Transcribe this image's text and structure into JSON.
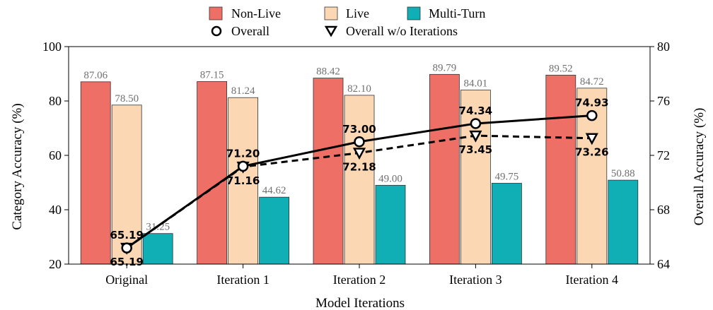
{
  "chart_data": {
    "type": "bar",
    "xlabel": "Model Iterations",
    "ylabel": "Category Accuracy  (%)",
    "y2label": "Overall Accuracy (%)",
    "categories": [
      "Original",
      "Iteration 1",
      "Iteration 2",
      "Iteration 3",
      "Iteration 4"
    ],
    "ylim": [
      20,
      100
    ],
    "yticks": [
      20,
      40,
      60,
      80,
      100
    ],
    "y2lim": [
      64,
      80
    ],
    "y2ticks": [
      64,
      68,
      72,
      76,
      80
    ],
    "series": [
      {
        "name": "Non-Live",
        "color": "#ee6f66",
        "values": [
          87.06,
          87.15,
          88.42,
          89.79,
          89.52
        ],
        "labels": [
          "87.06",
          "87.15",
          "88.42",
          "89.79",
          "89.52"
        ]
      },
      {
        "name": "Live",
        "color": "#fbd7b3",
        "values": [
          78.5,
          81.24,
          82.1,
          84.01,
          84.72
        ],
        "labels": [
          "78.50",
          "81.24",
          "82.10",
          "84.01",
          "84.72"
        ]
      },
      {
        "name": "Multi-Turn",
        "color": "#10aeb5",
        "values": [
          31.25,
          44.62,
          49.0,
          49.75,
          50.88
        ],
        "labels": [
          "31.25",
          "44.62",
          "49.00",
          "49.75",
          "50.88"
        ]
      }
    ],
    "lines": [
      {
        "name": "Overall",
        "marker": "circle",
        "style": "solid",
        "values": [
          65.19,
          71.2,
          73.0,
          74.34,
          74.93
        ],
        "labels": [
          "65.19",
          "71.20",
          "73.00",
          "74.34",
          "74.93"
        ]
      },
      {
        "name": "Overall w/o Iterations",
        "marker": "triangle-down",
        "style": "dashed",
        "values": [
          65.19,
          71.16,
          72.18,
          73.45,
          73.26
        ],
        "labels": [
          "65.19",
          "71.16",
          "72.18",
          "73.45",
          "73.26"
        ]
      }
    ],
    "legend_position": "top-center"
  }
}
